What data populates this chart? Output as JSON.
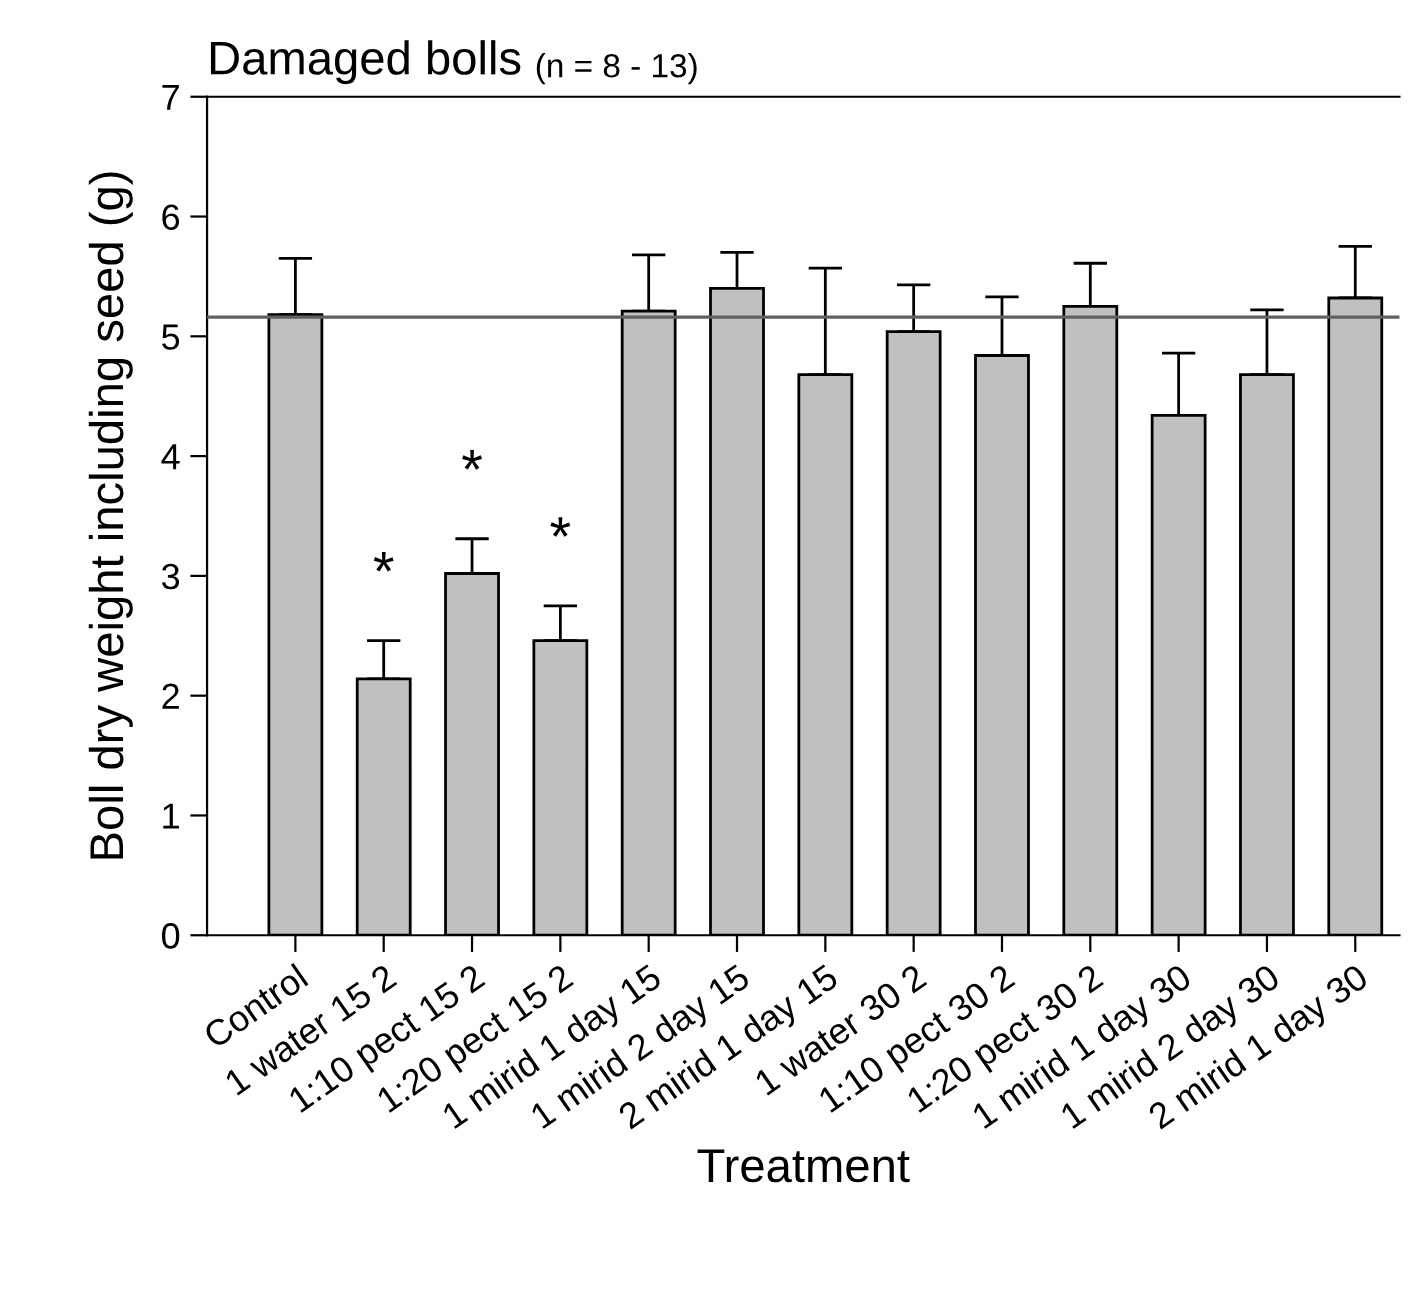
{
  "chart_data": {
    "type": "bar",
    "title": "Damaged bolls",
    "subtitle": "(n = 8 - 13)",
    "xlabel": "Treatment",
    "ylabel": "Boll dry weight including seed (g)",
    "categories": [
      "Control",
      "1 water 15 2",
      "1:10 pect 15 2",
      "1:20 pect 15 2",
      "1 mirid 1 day 15",
      "1 mirid 2 day 15",
      "2 mirid 1 day 15",
      "1 water 30 2",
      "1:10 pect 30 2",
      "1:20 pect 30 2",
      "1 mirid 1 day 30",
      "1 mirid 2 day 30",
      "2 mirid 1 day 30"
    ],
    "values": [
      5.18,
      2.14,
      3.02,
      2.46,
      5.21,
      5.4,
      4.68,
      5.04,
      4.84,
      5.25,
      4.34,
      4.68,
      5.32
    ],
    "errors": [
      [
        5.18,
        5.65
      ],
      [
        2.14,
        2.46
      ],
      [
        3.02,
        3.31
      ],
      [
        2.46,
        2.75
      ],
      [
        5.21,
        5.68
      ],
      [
        5.4,
        5.7
      ],
      [
        4.68,
        5.57
      ],
      [
        5.04,
        5.43
      ],
      [
        4.84,
        5.33
      ],
      [
        5.25,
        5.61
      ],
      [
        4.34,
        4.86
      ],
      [
        4.68,
        5.22
      ],
      [
        5.32,
        5.75
      ]
    ],
    "color": "#c0c0c0",
    "ylim": [
      0,
      7
    ],
    "yticks": [
      0,
      1,
      2,
      3,
      4,
      5,
      6,
      7
    ],
    "ref_lines": [
      {
        "axis": "y",
        "value": 5.16,
        "color": "#606060"
      }
    ],
    "value_labels": [
      null,
      "*",
      "*",
      "*",
      null,
      null,
      null,
      null,
      null,
      null,
      null,
      null,
      null
    ],
    "grid": false,
    "legend": false
  }
}
